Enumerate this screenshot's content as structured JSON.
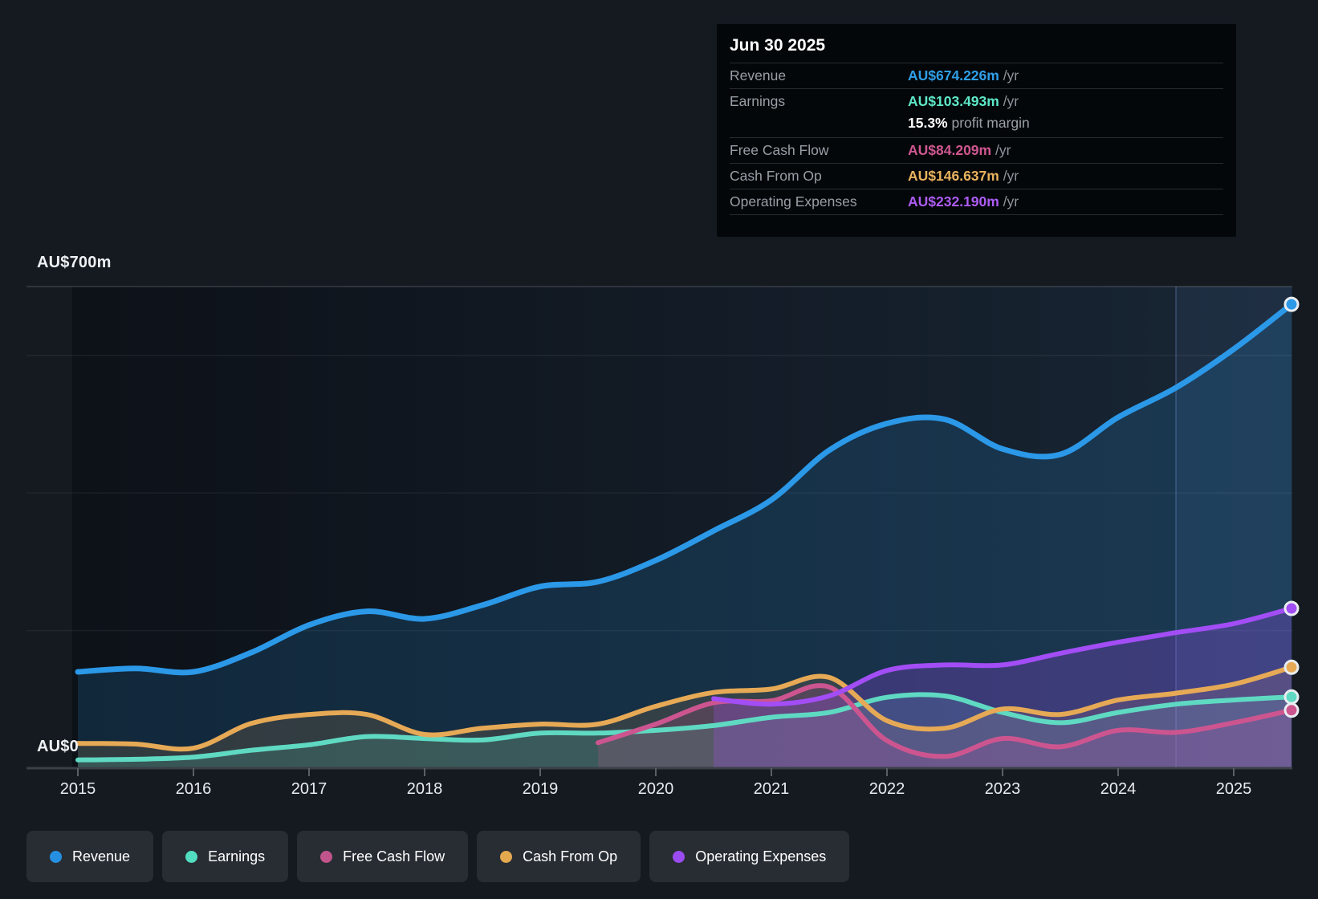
{
  "tooltip": {
    "date": "Jun 30 2025",
    "rows": [
      {
        "label": "Revenue",
        "value": "AU$674.226m",
        "suffix": " /yr",
        "color": "#2f9fe8"
      },
      {
        "label": "Earnings",
        "value": "AU$103.493m",
        "suffix": " /yr",
        "color": "#5ee8c8",
        "sub": {
          "bold": "15.3%",
          "text": " profit margin"
        }
      },
      {
        "label": "Free Cash Flow",
        "value": "AU$84.209m",
        "suffix": " /yr",
        "color": "#cf5791"
      },
      {
        "label": "Cash From Op",
        "value": "AU$146.637m",
        "suffix": " /yr",
        "color": "#eab35e"
      },
      {
        "label": "Operating Expenses",
        "value": "AU$232.190m",
        "suffix": " /yr",
        "color": "#ad5cf5"
      }
    ]
  },
  "axes": {
    "y_top_label": "AU$700m",
    "y_zero_label": "AU$0",
    "x_ticks": [
      2015,
      2016,
      2017,
      2018,
      2019,
      2020,
      2021,
      2022,
      2023,
      2024,
      2025
    ]
  },
  "legend": {
    "items": [
      {
        "label": "Revenue",
        "color": "#2590e2"
      },
      {
        "label": "Earnings",
        "color": "#52dcc0"
      },
      {
        "label": "Free Cash Flow",
        "color": "#c2548c"
      },
      {
        "label": "Cash From Op",
        "color": "#e4a84f"
      },
      {
        "label": "Operating Expenses",
        "color": "#9a4cf0"
      }
    ]
  },
  "chart_data": {
    "type": "line",
    "units": "AU$m",
    "ylim": [
      0,
      700
    ],
    "gridlines": [
      0,
      200,
      400,
      600,
      700
    ],
    "highlight_band_x": [
      2024.5,
      2025.5
    ],
    "x": [
      2015,
      2015.5,
      2016,
      2016.5,
      2017,
      2017.5,
      2018,
      2018.5,
      2019,
      2019.5,
      2020,
      2020.5,
      2021,
      2021.5,
      2022,
      2022.5,
      2023,
      2023.5,
      2024,
      2024.5,
      2025,
      2025.5
    ],
    "series": [
      {
        "name": "Revenue",
        "color": "#2b98e8",
        "values": [
          140,
          145,
          140,
          168,
          208,
          228,
          217,
          237,
          264,
          271,
          302,
          345,
          390,
          462,
          501,
          507,
          464,
          456,
          510,
          553,
          609,
          674.226
        ]
      },
      {
        "name": "Earnings",
        "color": "#5fd9c2",
        "values": [
          12,
          13,
          16,
          26,
          34,
          46,
          43,
          41,
          51,
          51,
          55,
          62,
          74,
          81,
          103,
          105,
          81,
          66,
          81,
          93,
          99,
          103.493
        ]
      },
      {
        "name": "Free Cash Flow",
        "color": "#cc5590",
        "values": [
          null,
          null,
          null,
          null,
          null,
          null,
          null,
          null,
          null,
          37,
          64,
          95,
          98,
          118,
          40,
          17,
          43,
          31,
          55,
          52,
          66,
          84.209
        ]
      },
      {
        "name": "Cash From Op",
        "color": "#e6a955",
        "values": [
          36,
          35,
          29,
          65,
          78,
          78,
          49,
          58,
          64,
          64,
          90,
          110,
          115,
          132,
          69,
          58,
          86,
          78,
          99,
          109,
          122,
          146.637
        ]
      },
      {
        "name": "Operating Expenses",
        "color": "#a24df5",
        "values": [
          null,
          null,
          null,
          null,
          null,
          null,
          null,
          null,
          null,
          null,
          null,
          101,
          93,
          105,
          142,
          150,
          150,
          167,
          183,
          197,
          210,
          232.19
        ]
      }
    ]
  }
}
